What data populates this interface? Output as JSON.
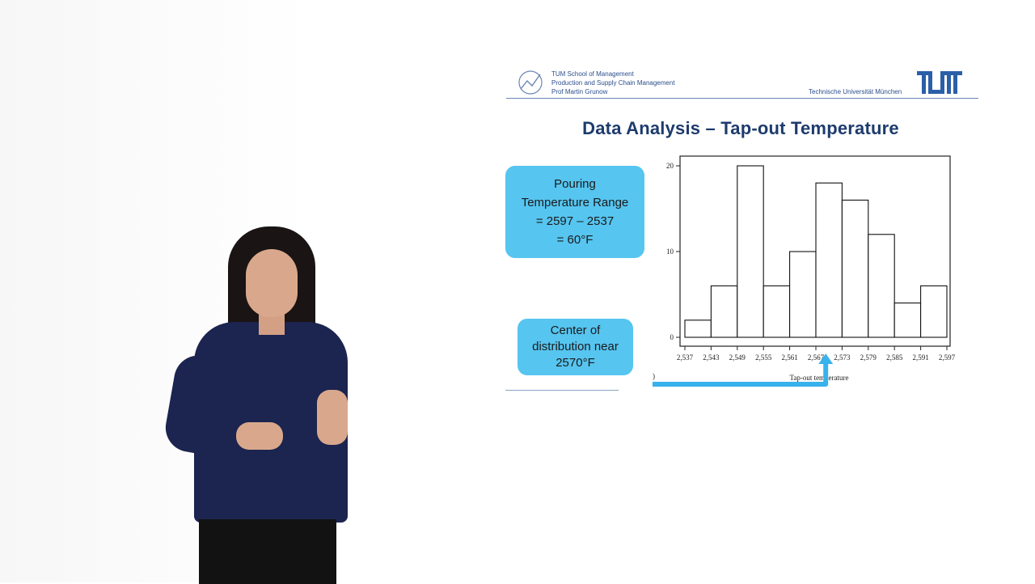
{
  "header": {
    "lines": [
      "TUM School of Management",
      "Production and Supply Chain Management",
      "Prof Martin Grunow"
    ],
    "university": "Technische Universität München"
  },
  "slide": {
    "title": "Data Analysis – Tap-out Temperature"
  },
  "callouts": {
    "range": "Pouring\nTemperature Range\n= 2597 – 2537\n= 60°F",
    "center": "Center of\ndistribution near\n2570°F"
  },
  "colors": {
    "title": "#1d3b6d",
    "callout": "#56c5f0",
    "arrow": "#38b2ec"
  },
  "chart_data": {
    "type": "bar",
    "categories": [
      "2,537-2,543",
      "2,543-2,549",
      "2,549-2,555",
      "2,555-2,561",
      "2,561-2,567",
      "2,567-2,573",
      "2,573-2,579",
      "2,579-2,585",
      "2,585-2,591",
      "2,591-2,597"
    ],
    "x_edges": [
      2537,
      2543,
      2549,
      2555,
      2561,
      2567,
      2573,
      2579,
      2585,
      2591,
      2597
    ],
    "x_tick_labels": [
      "2,537",
      "2,543",
      "2,549",
      "2,555",
      "2,561",
      "2,567",
      "2,573",
      "2,579",
      "2,585",
      "2,591",
      "2,597"
    ],
    "values": [
      2,
      6,
      20,
      6,
      10,
      18,
      16,
      12,
      4,
      6
    ],
    "y_ticks": [
      0,
      10,
      20
    ],
    "ylim": [
      0,
      21
    ],
    "xlabel": "Tap-out temperature",
    "panel_label": "(a)",
    "grid": false
  }
}
